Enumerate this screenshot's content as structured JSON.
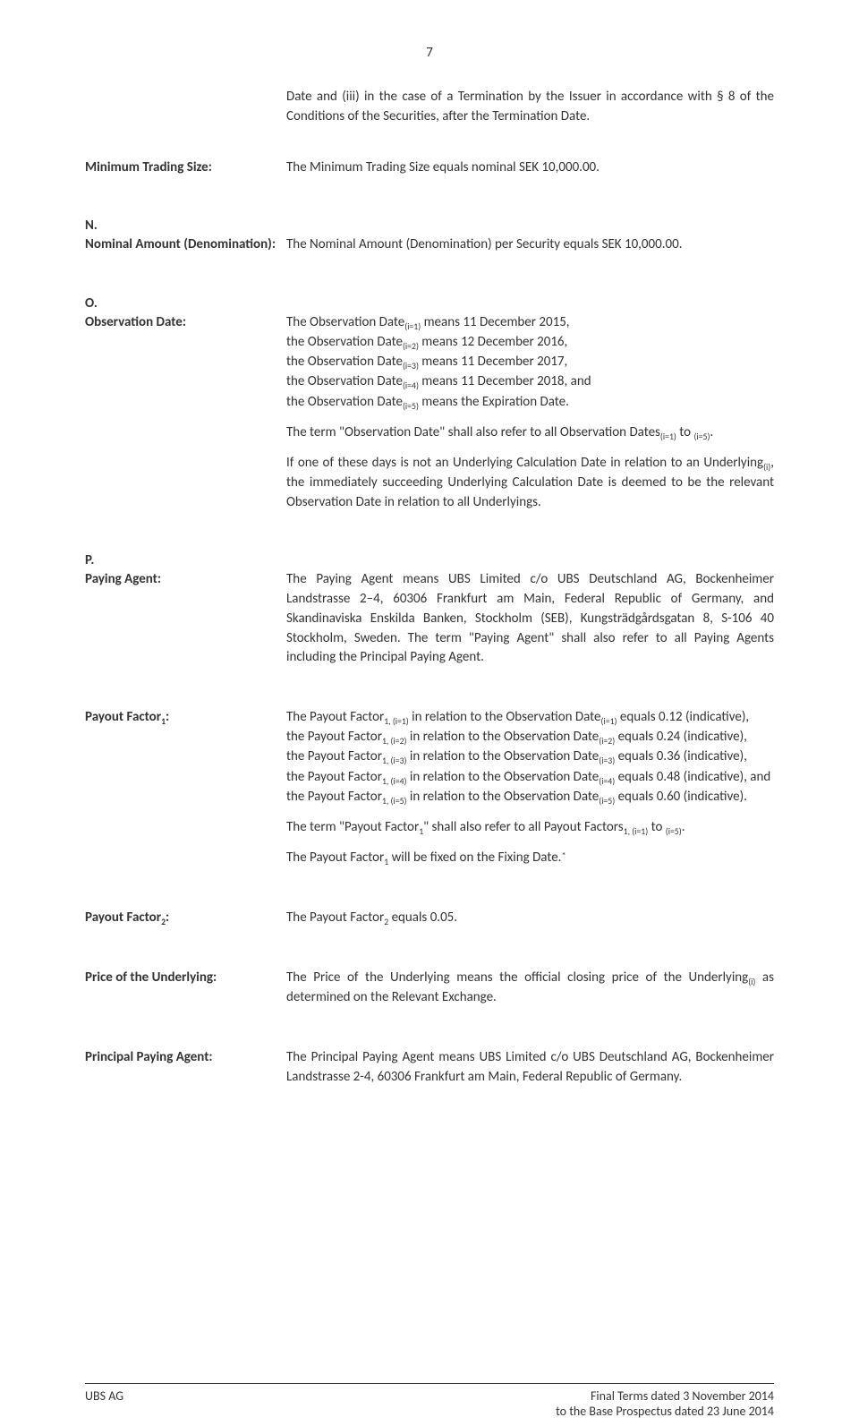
{
  "page_number": "7",
  "intro": "Date and (iii) in the case of a Termination by the Issuer in accordance with § 8 of the Conditions of the Securities, after the Termination Date.",
  "min_trading": {
    "label": "Minimum Trading Size:",
    "value": "The Minimum Trading Size equals nominal SEK 10,000.00."
  },
  "section_n": {
    "letter": "N.",
    "label": "Nominal Amount (Denomination):",
    "value": "The Nominal Amount (Denomination) per Security equals SEK 10,000.00."
  },
  "section_o": {
    "letter": "O.",
    "label": "Observation Date:",
    "p1_a": "The Observation Date",
    "p1_s1": "(i=1)",
    "p1_b": " means 11 December 2015,",
    "p1_c": "the Observation Date",
    "p1_s2": "(i=2)",
    "p1_d": " means 12 December 2016,",
    "p1_e": "the Observation Date",
    "p1_s3": "(i=3)",
    "p1_f": " means 11 December 2017,",
    "p1_g": "the Observation Date",
    "p1_s4": "(i=4)",
    "p1_h": " means 11 December 2018, and",
    "p1_i": "the Observation Date",
    "p1_s5": "(i=5)",
    "p1_j": " means the Expiration Date.",
    "p2_a": "The term \"Observation Date\" shall also refer to all Observation Dates",
    "p2_s1": "(i=1)",
    "p2_b": " to ",
    "p2_s2": "(i=5)",
    "p2_c": ".",
    "p3_a": "If one of these days is not an Underlying Calculation Date in relation to an Underlying",
    "p3_s1": "(i)",
    "p3_b": ", the immediately succeeding Underlying Calculation Date is deemed to be the relevant Observation Date in relation to all Underlyings."
  },
  "section_p": {
    "letter": "P.",
    "label": "Paying Agent:",
    "value": "The Paying Agent means UBS Limited c/o UBS Deutschland AG, Bockenheimer Landstrasse 2–4, 60306 Frankfurt am Main, Federal Republic of Germany, and Skandinaviska Enskilda Banken, Stockholm (SEB), Kungsträdgårdsgatan 8, S-106 40 Stockholm, Sweden. The term \"Paying Agent\" shall also refer to all Paying Agents including the Principal Paying Agent."
  },
  "payout1": {
    "label_a": "Payout Factor",
    "label_s": "1",
    "label_b": ":",
    "l1a": "The Payout Factor",
    "l1s": "1, (i=1)",
    "l1b": " in relation to the Observation Date",
    "l1s2": "(i=1)",
    "l1c": " equals 0.12 (indicative),",
    "l2a": "the Payout Factor",
    "l2s": "1, (i=2)",
    "l2b": " in relation to the Observation Date",
    "l2s2": "(i=2)",
    "l2c": " equals 0.24 (indicative),",
    "l3a": "the Payout Factor",
    "l3s": "1, (i=3)",
    "l3b": " in relation to the Observation Date",
    "l3s2": "(i=3)",
    "l3c": " equals 0.36 (indicative),",
    "l4a": "the Payout Factor",
    "l4s": "1, (i=4)",
    "l4b": " in relation to the Observation Date",
    "l4s2": "(i=4)",
    "l4c": " equals 0.48 (indicative), and",
    "l5a": "the Payout Factor",
    "l5s": "1, (i=5)",
    "l5b": " in relation to the Observation Date",
    "l5s2": "(i=5)",
    "l5c": " equals 0.60 (indicative).",
    "p2_a": "The term \"Payout Factor",
    "p2_s1": "1",
    "p2_b": "\" shall also refer to all Payout Factors",
    "p2_s2": "1, (i=1)",
    "p2_c": " to ",
    "p2_s3": "(i=5)",
    "p2_d": ".",
    "p3_a": "The Payout Factor",
    "p3_s": "1",
    "p3_b": " will be fixed on the Fixing Date.",
    "p3_star": "*"
  },
  "payout2": {
    "label_a": "Payout Factor",
    "label_s": "2",
    "label_b": ":",
    "v_a": "The Payout Factor",
    "v_s": "2",
    "v_b": " equals 0.05."
  },
  "price_underlying": {
    "label": "Price of the Underlying:",
    "v_a": "The Price of the Underlying means the official closing price of the Underlying",
    "v_s": "(i)",
    "v_b": " as determined on the Relevant Exchange."
  },
  "principal": {
    "label": "Principal Paying Agent:",
    "value": "The Principal Paying Agent means UBS Limited c/o UBS Deutschland AG, Bockenheimer Landstrasse 2-4, 60306 Frankfurt am Main, Federal Republic of Germany."
  },
  "footer": {
    "left": "UBS AG",
    "right1": "Final Terms dated 3 November 2014",
    "right2": "to the Base Prospectus dated 23 June 2014"
  }
}
